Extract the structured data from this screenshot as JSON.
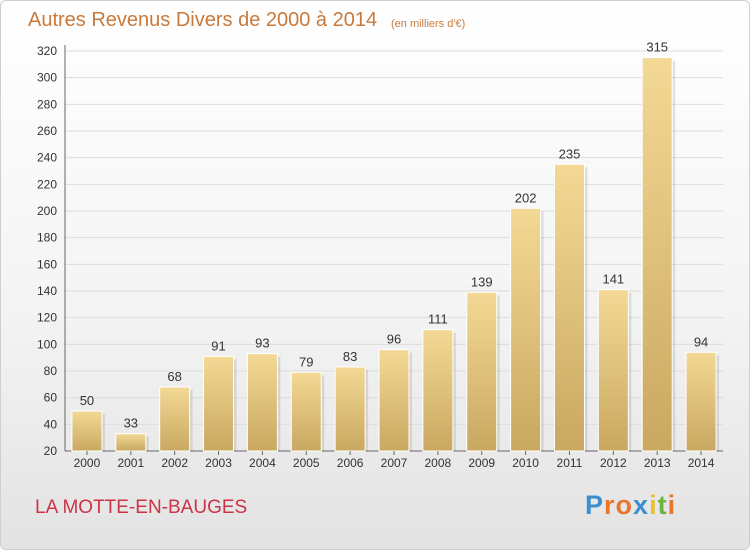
{
  "header": {
    "title": "Autres Revenus Divers de 2000 à 2014",
    "subtitle": "(en milliers d'€)"
  },
  "footer": {
    "location": "LA MOTTE-EN-BAUGES",
    "logo_text": "Proxiti"
  },
  "colors": {
    "title": "#c87a3c",
    "location": "#cc3344",
    "bar_light": "#f3d995",
    "bar_dark": "#c9a860",
    "logo_letters": [
      "#3a8fd0",
      "#e8772e",
      "#e8772e",
      "#3a8fd0",
      "#e8c12e",
      "#6cb33f",
      "#e8772e"
    ]
  },
  "chart_data": {
    "type": "bar",
    "title": "Autres Revenus Divers de 2000 à 2014",
    "subtitle": "(en milliers d'€)",
    "categories": [
      "2000",
      "2001",
      "2002",
      "2003",
      "2004",
      "2005",
      "2006",
      "2007",
      "2008",
      "2009",
      "2010",
      "2011",
      "2012",
      "2013",
      "2014"
    ],
    "values": [
      50,
      33,
      68,
      91,
      93,
      79,
      83,
      96,
      111,
      139,
      202,
      235,
      141,
      315,
      94
    ],
    "ylim": [
      20,
      320
    ],
    "yticks": [
      20,
      40,
      60,
      80,
      100,
      120,
      140,
      160,
      180,
      200,
      220,
      240,
      260,
      280,
      300,
      320
    ],
    "grid": true,
    "legend": "none"
  }
}
